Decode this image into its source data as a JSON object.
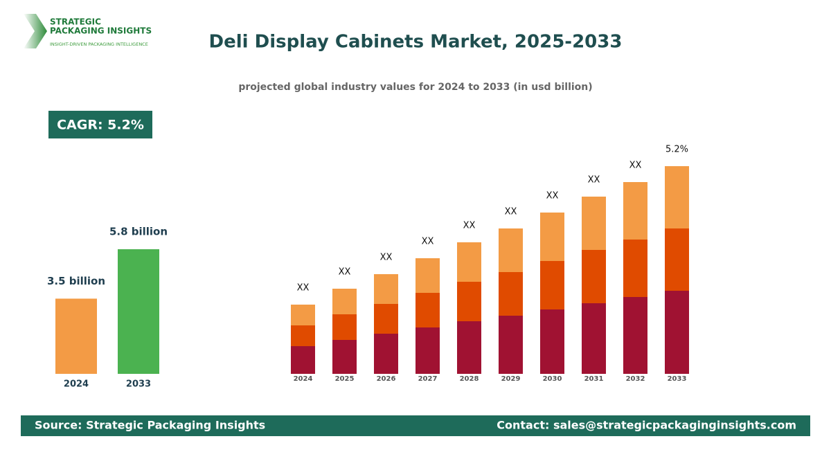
{
  "logo": {
    "line1": "STRATEGIC",
    "line2": "PACKAGING INSIGHTS",
    "tagline": "INSIGHT-DRIVEN PACKAGING INTELLIGENCE"
  },
  "title": "Deli Display Cabinets Market, 2025-2033",
  "subtitle": "projected global industry values for 2024 to 2033 (in usd billion)",
  "cagr": "CAGR: 5.2%",
  "chart_data": [
    {
      "type": "bar",
      "categories": [
        "2024",
        "2033"
      ],
      "values": [
        3.5,
        5.8
      ],
      "value_labels": [
        "3.5 billion",
        "5.8 billion"
      ],
      "colors": [
        "#f39b45",
        "#4bb250"
      ],
      "ylim": [
        0,
        5.8
      ]
    },
    {
      "type": "stacked_bar",
      "categories": [
        "2024",
        "2025",
        "2026",
        "2027",
        "2028",
        "2029",
        "2030",
        "2031",
        "2032",
        "2033"
      ],
      "series": [
        {
          "color": "#a01232",
          "values": [
            40,
            49,
            58,
            67,
            76,
            84,
            93,
            102,
            111,
            120
          ]
        },
        {
          "color": "#e04b00",
          "values": [
            30,
            37,
            43,
            50,
            57,
            63,
            70,
            77,
            83,
            90
          ]
        },
        {
          "color": "#f39b45",
          "values": [
            30,
            37,
            43,
            50,
            57,
            63,
            70,
            77,
            83,
            90
          ]
        }
      ],
      "bar_labels": [
        "XX",
        "XX",
        "XX",
        "XX",
        "XX",
        "XX",
        "XX",
        "XX",
        "XX",
        "5.2%"
      ],
      "ylim": [
        0,
        300
      ]
    }
  ],
  "footer": {
    "source": "Source: Strategic Packaging Insights",
    "contact": "Contact: sales@strategicpackaginginsights.com"
  }
}
